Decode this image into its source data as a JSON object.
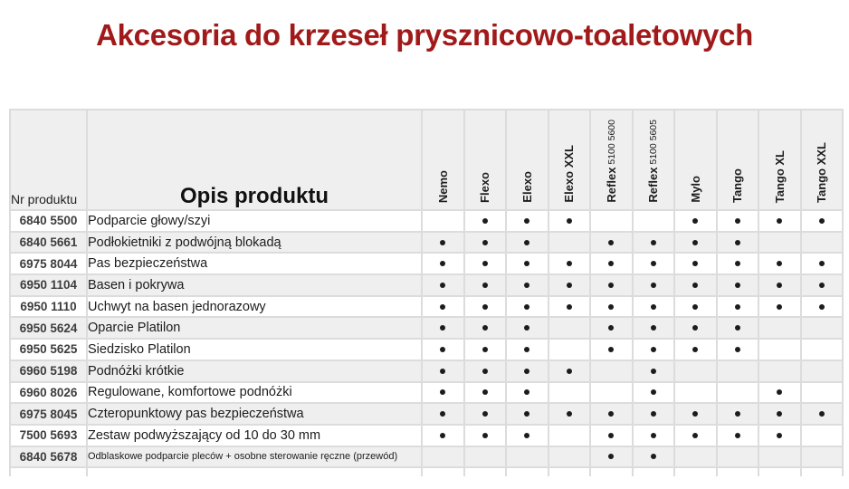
{
  "title": "Akcesoria do krzeseł prysznicowo-toaletowych",
  "colors": {
    "title": "#A11A1A",
    "header_bg": "#F0EFEF",
    "alt_row_bg": "#F0EFEF",
    "grid_line": "#DCDCDC",
    "text": "#1C1C1C",
    "dot": "#1C1C1C"
  },
  "table": {
    "nr_header": "Nr produktu",
    "desc_header": "Opis produktu",
    "models": [
      {
        "name": "Nemo",
        "sub": ""
      },
      {
        "name": "Flexo",
        "sub": ""
      },
      {
        "name": "Elexo",
        "sub": ""
      },
      {
        "name": "Elexo XXL",
        "sub": ""
      },
      {
        "name": "Reflex",
        "sub": "5100 5600"
      },
      {
        "name": "Reflex",
        "sub": "5100 5605"
      },
      {
        "name": "Mylo",
        "sub": ""
      },
      {
        "name": "Tango",
        "sub": ""
      },
      {
        "name": "Tango XL",
        "sub": ""
      },
      {
        "name": "Tango XXL",
        "sub": ""
      }
    ],
    "rows": [
      {
        "nr": "6840 5500",
        "desc": "Podparcie głowy/szyi",
        "dots": [
          0,
          1,
          1,
          1,
          0,
          0,
          1,
          1,
          1,
          1
        ],
        "small": false
      },
      {
        "nr": "6840 5661",
        "desc": "Podłokietniki z podwójną blokadą",
        "dots": [
          1,
          1,
          1,
          0,
          1,
          1,
          1,
          1,
          0,
          0
        ],
        "small": false
      },
      {
        "nr": "6975 8044",
        "desc": "Pas bezpieczeństwa",
        "dots": [
          1,
          1,
          1,
          1,
          1,
          1,
          1,
          1,
          1,
          1
        ],
        "small": false
      },
      {
        "nr": "6950 1104",
        "desc": "Basen i pokrywa",
        "dots": [
          1,
          1,
          1,
          1,
          1,
          1,
          1,
          1,
          1,
          1
        ],
        "small": false
      },
      {
        "nr": "6950 1110",
        "desc": "Uchwyt na basen jednorazowy",
        "dots": [
          1,
          1,
          1,
          1,
          1,
          1,
          1,
          1,
          1,
          1
        ],
        "small": false
      },
      {
        "nr": "6950 5624",
        "desc": "Oparcie Platilon",
        "dots": [
          1,
          1,
          1,
          0,
          1,
          1,
          1,
          1,
          0,
          0
        ],
        "small": false
      },
      {
        "nr": "6950 5625",
        "desc": "Siedzisko Platilon",
        "dots": [
          1,
          1,
          1,
          0,
          1,
          1,
          1,
          1,
          0,
          0
        ],
        "small": false
      },
      {
        "nr": "6960 5198",
        "desc": "Podnóżki krótkie",
        "dots": [
          1,
          1,
          1,
          1,
          0,
          1,
          0,
          0,
          0,
          0
        ],
        "small": false
      },
      {
        "nr": "6960 8026",
        "desc": "Regulowane, komfortowe podnóżki",
        "dots": [
          1,
          1,
          1,
          0,
          0,
          1,
          0,
          0,
          1,
          0
        ],
        "small": false
      },
      {
        "nr": "6975 8045",
        "desc": "Czteropunktowy pas bezpieczeństwa",
        "dots": [
          1,
          1,
          1,
          1,
          1,
          1,
          1,
          1,
          1,
          1
        ],
        "small": false
      },
      {
        "nr": "7500 5693",
        "desc": "Zestaw podwyższający od 10 do 30 mm",
        "dots": [
          1,
          1,
          1,
          0,
          1,
          1,
          1,
          1,
          1,
          0
        ],
        "small": false
      },
      {
        "nr": "6840 5678",
        "desc": "Odblaskowe podparcie pleców + osobne sterowanie ręczne (przewód)",
        "dots": [
          0,
          0,
          0,
          0,
          1,
          1,
          0,
          0,
          0,
          0
        ],
        "small": true
      }
    ]
  }
}
